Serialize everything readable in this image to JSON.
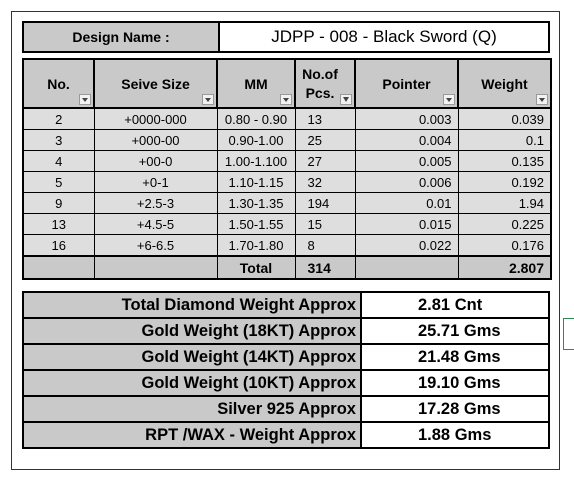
{
  "design": {
    "label": "Design Name :",
    "value": "JDPP - 008 - Black Sword (Q)"
  },
  "table": {
    "headers": [
      "No.",
      "Seive Size",
      "MM",
      "No.of Pcs.",
      "Pointer",
      "Weight"
    ],
    "rows": [
      [
        "2",
        "+0000-000",
        "0.80 - 0.90",
        "13",
        "0.003",
        "0.039"
      ],
      [
        "3",
        "+000-00",
        "0.90-1.00",
        "25",
        "0.004",
        "0.1"
      ],
      [
        "4",
        "+00-0",
        "1.00-1.100",
        "27",
        "0.005",
        "0.135"
      ],
      [
        "5",
        "+0-1",
        "1.10-1.15",
        "32",
        "0.006",
        "0.192"
      ],
      [
        "9",
        "+2.5-3",
        "1.30-1.35",
        "194",
        "0.01",
        "1.94"
      ],
      [
        "13",
        "+4.5-5",
        "1.50-1.55",
        "15",
        "0.015",
        "0.225"
      ],
      [
        "16",
        "+6-6.5",
        "1.70-1.80",
        "8",
        "0.022",
        "0.176"
      ]
    ],
    "total": {
      "label": "Total",
      "pcs": "314",
      "weight": "2.807"
    }
  },
  "summary": [
    {
      "label": "Total Diamond Weight Approx",
      "value": "2.81 Cnt"
    },
    {
      "label": "Gold Weight (18KT) Approx",
      "value": "25.71 Gms"
    },
    {
      "label": "Gold Weight (14KT) Approx",
      "value": "21.48 Gms"
    },
    {
      "label": "Gold Weight (10KT) Approx",
      "value": "19.10 Gms"
    },
    {
      "label": "Silver 925 Approx",
      "value": "17.28 Gms"
    },
    {
      "label": "RPT /WAX - Weight Approx",
      "value": "1.88 Gms"
    }
  ]
}
